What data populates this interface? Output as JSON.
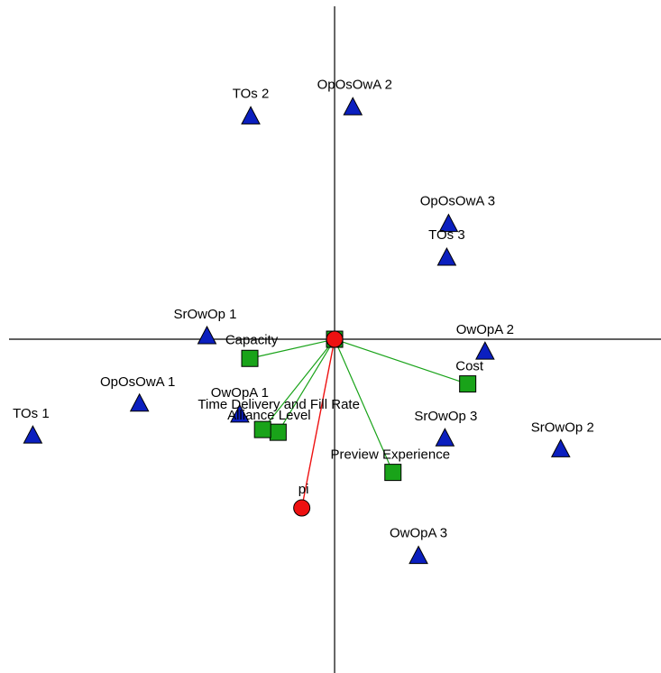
{
  "chart_data": {
    "type": "scatter",
    "title": "",
    "xlabel": "",
    "ylabel": "",
    "grid": false,
    "legend": "none",
    "xlim": [
      -3.67,
      3.58
    ],
    "ylim": [
      -3.66,
      3.72
    ],
    "colors": {
      "objects": "#0b1fbf",
      "attributes": "#19a319",
      "ideal": "#ee1111",
      "attribute_vectors": "#19a319",
      "ideal_vector": "#ee1111",
      "axes": "#000000"
    },
    "series": [
      {
        "marker": "triangle",
        "points": [
          {
            "label": "TOs 2",
            "x": -0.92,
            "y": 2.45
          },
          {
            "label": "OpOsOwA 2",
            "x": 0.2,
            "y": 2.55
          },
          {
            "label": "OpOsOwA 3",
            "x": 1.25,
            "y": 1.27
          },
          {
            "label": "TOs 3",
            "x": 1.23,
            "y": 0.9
          },
          {
            "label": "SrOwOp 1",
            "x": -1.4,
            "y": 0.04
          },
          {
            "label": "OwOpA 2",
            "x": 1.65,
            "y": -0.13
          },
          {
            "label": "OpOsOwA 1",
            "x": -2.14,
            "y": -0.7
          },
          {
            "label": "OwOpA 1",
            "x": -1.04,
            "y": -0.82
          },
          {
            "label": "TOs 1",
            "x": -3.31,
            "y": -1.05
          },
          {
            "label": "SrOwOp 3",
            "x": 1.21,
            "y": -1.08
          },
          {
            "label": "SrOwOp 2",
            "x": 2.48,
            "y": -1.2
          },
          {
            "label": "OwOpA 3",
            "x": 0.92,
            "y": -2.37
          }
        ]
      },
      {
        "marker": "square",
        "points": [
          {
            "label": "Capacity",
            "x": -0.93,
            "y": -0.21
          },
          {
            "label": "Cost",
            "x": 1.46,
            "y": -0.49
          },
          {
            "label": "Alliance Level",
            "x": -0.62,
            "y": -1.02
          },
          {
            "label": "Time Delivery and Fill Rate",
            "x": -0.79,
            "y": -0.99
          },
          {
            "label": "Preview Experience",
            "x": 0.64,
            "y": -1.46
          }
        ]
      },
      {
        "marker": "circle",
        "points": [
          {
            "label": "",
            "x": 0.0,
            "y": 0.0
          },
          {
            "label": "pi",
            "x": -0.36,
            "y": -1.85
          }
        ]
      }
    ]
  }
}
